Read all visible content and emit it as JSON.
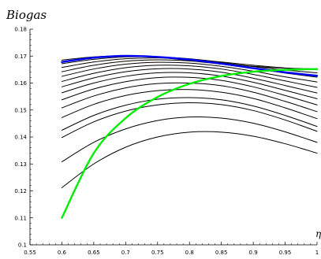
{
  "chart_data": {
    "type": "line",
    "title": "Biogas",
    "xlabel": "η",
    "ylabel": "",
    "xlim": [
      0.55,
      1.0
    ],
    "ylim": [
      0.1,
      0.18
    ],
    "x_ticks": [
      0.55,
      0.6,
      0.65,
      0.7,
      0.75,
      0.8,
      0.85,
      0.9,
      0.95,
      1.0
    ],
    "x_tick_labels": [
      "0.55",
      "0.6",
      "0.65",
      "0.7",
      "0.75",
      "0.8",
      "0.85",
      "0.9",
      "0.95",
      "1"
    ],
    "y_ticks": [
      0.1,
      0.11,
      0.12,
      0.13,
      0.14,
      0.15,
      0.16,
      0.17,
      0.18
    ],
    "y_tick_labels": [
      "0.1",
      "0.11",
      "0.12",
      "0.13",
      "0.14",
      "0.15",
      "0.16",
      "0.17",
      "0.18"
    ],
    "grid": false,
    "x": [
      0.6,
      0.65,
      0.7,
      0.75,
      0.8,
      0.85,
      0.9,
      0.95,
      1.0
    ],
    "series": [
      {
        "color": "#000000",
        "values": [
          0.1685,
          0.1697,
          0.1701,
          0.1695,
          0.1684,
          0.1672,
          0.1662,
          0.1655,
          0.1653
        ]
      },
      {
        "color": "#000000",
        "values": [
          0.1672,
          0.1688,
          0.1697,
          0.1697,
          0.169,
          0.1678,
          0.1666,
          0.1656,
          0.165
        ]
      },
      {
        "color": "#000000",
        "values": [
          0.1658,
          0.1678,
          0.169,
          0.1693,
          0.1688,
          0.1676,
          0.1661,
          0.1648,
          0.1638
        ]
      },
      {
        "color": "#000000",
        "values": [
          0.1642,
          0.1666,
          0.1681,
          0.1686,
          0.1682,
          0.167,
          0.1654,
          0.1637,
          0.1622
        ]
      },
      {
        "color": "#000000",
        "values": [
          0.1625,
          0.1652,
          0.167,
          0.1677,
          0.1674,
          0.1662,
          0.1644,
          0.1623,
          0.1604
        ]
      },
      {
        "color": "#000000",
        "values": [
          0.1606,
          0.1636,
          0.1657,
          0.1666,
          0.1664,
          0.1652,
          0.1632,
          0.1608,
          0.1584
        ]
      },
      {
        "color": "#000000",
        "values": [
          0.1586,
          0.1619,
          0.1642,
          0.1653,
          0.1652,
          0.164,
          0.1618,
          0.1591,
          0.1563
        ]
      },
      {
        "color": "#000000",
        "values": [
          0.1564,
          0.16,
          0.1625,
          0.1638,
          0.1638,
          0.1626,
          0.1603,
          0.1573,
          0.1542
        ]
      },
      {
        "color": "#000000",
        "values": [
          0.1538,
          0.1578,
          0.1605,
          0.162,
          0.1621,
          0.161,
          0.1586,
          0.1554,
          0.1519
        ]
      },
      {
        "color": "#000000",
        "values": [
          0.1508,
          0.1552,
          0.1582,
          0.1598,
          0.16,
          0.159,
          0.1566,
          0.1532,
          0.1494
        ]
      },
      {
        "color": "#000000",
        "values": [
          0.1472,
          0.1521,
          0.1554,
          0.1572,
          0.1576,
          0.1566,
          0.1543,
          0.1508,
          0.1468
        ]
      },
      {
        "color": "#000000",
        "values": [
          0.1425,
          0.148,
          0.1518,
          0.154,
          0.1546,
          0.1538,
          0.1515,
          0.148,
          0.1439
        ]
      },
      {
        "color": "#000000",
        "values": [
          0.1398,
          0.1456,
          0.1496,
          0.1519,
          0.1527,
          0.152,
          0.1498,
          0.1463,
          0.1421
        ]
      },
      {
        "color": "#000000",
        "values": [
          0.1308,
          0.138,
          0.143,
          0.1461,
          0.1474,
          0.147,
          0.1451,
          0.1419,
          0.138
        ]
      },
      {
        "color": "#000000",
        "values": [
          0.1212,
          0.13,
          0.1362,
          0.14,
          0.1418,
          0.1418,
          0.1403,
          0.1375,
          0.134
        ]
      },
      {
        "color": "#0000ff",
        "values": [
          0.1678,
          0.1694,
          0.1701,
          0.1697,
          0.1687,
          0.1672,
          0.1655,
          0.164,
          0.1627
        ]
      },
      {
        "color": "#00ee00",
        "values": [
          0.11,
          0.134,
          0.147,
          0.1548,
          0.1597,
          0.1626,
          0.1642,
          0.1649,
          0.1652
        ]
      }
    ]
  }
}
